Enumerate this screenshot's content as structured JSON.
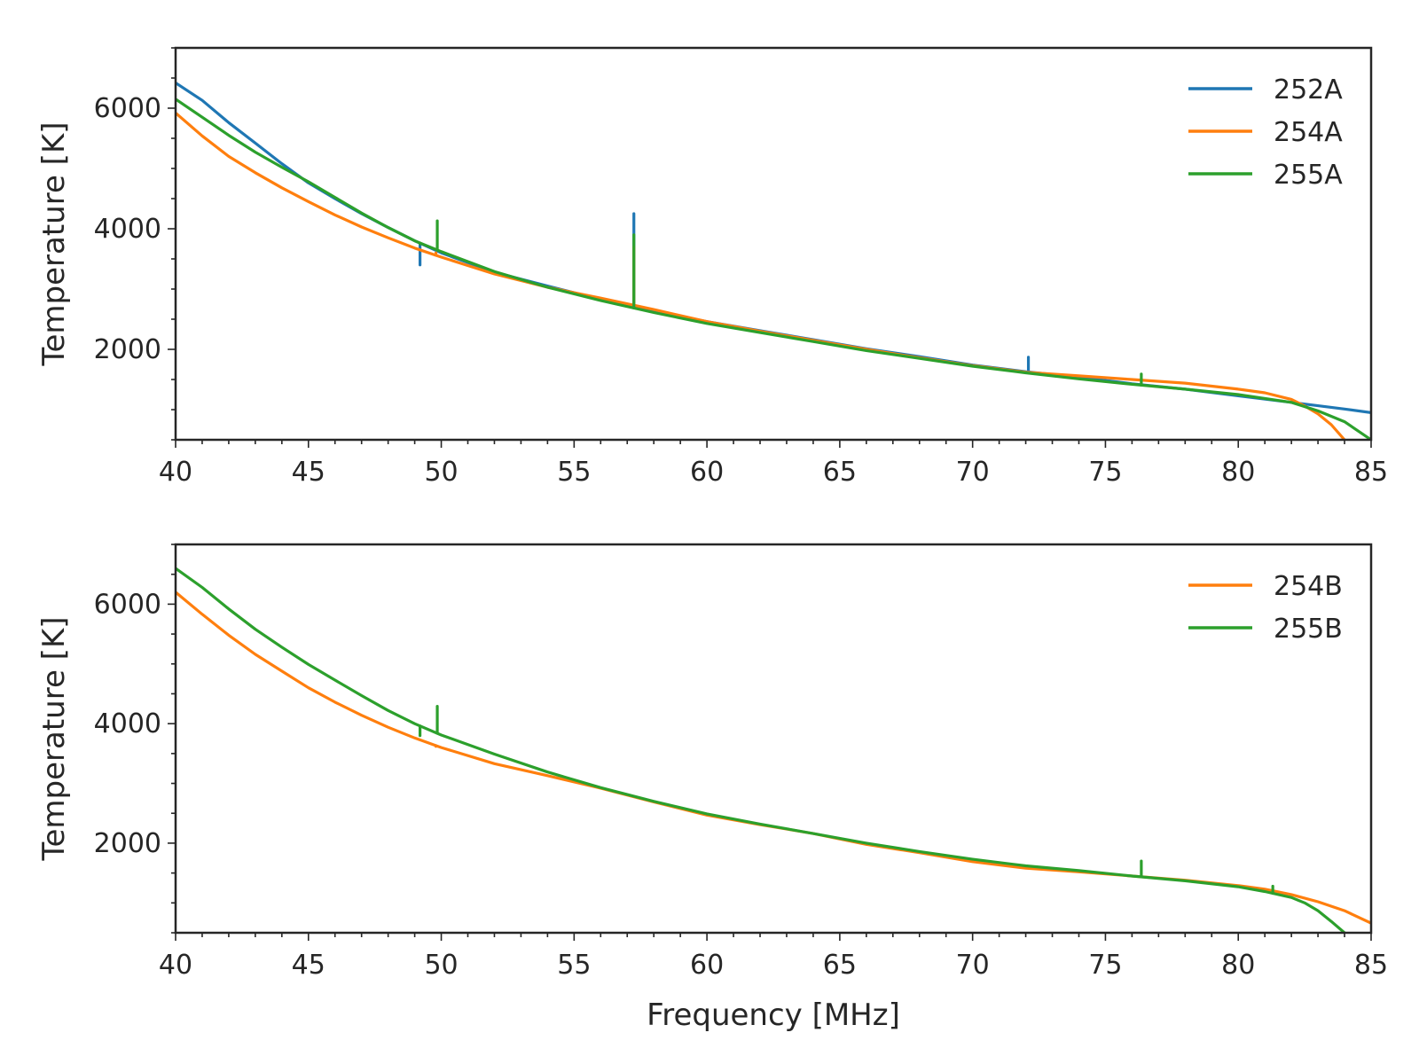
{
  "chart_data": [
    {
      "type": "line",
      "xlim": [
        40,
        85
      ],
      "ylim": [
        500,
        7000
      ],
      "xticks": [
        40,
        45,
        50,
        55,
        60,
        65,
        70,
        75,
        80,
        85
      ],
      "yticks": [
        2000,
        4000,
        6000
      ],
      "xlabel": "",
      "ylabel": "Temperature [K]",
      "legend_position": "upper-right",
      "grid": false,
      "series": [
        {
          "name": "252A",
          "color": "#1f77b4",
          "x": [
            40,
            41,
            42,
            43,
            44,
            45,
            46,
            47,
            48,
            49,
            50,
            52,
            54,
            56,
            58,
            60,
            62,
            64,
            66,
            68,
            70,
            72,
            74,
            76,
            78,
            80,
            82,
            84,
            85
          ],
          "y": [
            6420,
            6130,
            5760,
            5420,
            5080,
            4760,
            4500,
            4250,
            4020,
            3800,
            3600,
            3280,
            3050,
            2830,
            2630,
            2460,
            2310,
            2160,
            2010,
            1880,
            1740,
            1630,
            1540,
            1430,
            1340,
            1230,
            1120,
            1010,
            950
          ],
          "spikes": [
            {
              "x": 49.2,
              "y": 3400
            },
            {
              "x": 57.25,
              "y": 4250
            },
            {
              "x": 72.1,
              "y": 1870
            }
          ]
        },
        {
          "name": "254A",
          "color": "#ff7f0e",
          "x": [
            40,
            41,
            42,
            43,
            44,
            45,
            46,
            47,
            48,
            49,
            50,
            52,
            54,
            56,
            58,
            60,
            62,
            64,
            66,
            68,
            70,
            72,
            74,
            76,
            78,
            80,
            81,
            82,
            82.5,
            83,
            83.5,
            84
          ],
          "y": [
            5920,
            5540,
            5200,
            4930,
            4680,
            4450,
            4230,
            4030,
            3850,
            3680,
            3530,
            3250,
            3030,
            2850,
            2660,
            2460,
            2300,
            2150,
            2000,
            1860,
            1730,
            1620,
            1560,
            1500,
            1440,
            1340,
            1280,
            1170,
            1060,
            930,
            750,
            500
          ],
          "spikes": [
            {
              "x": 49.8,
              "y": 3600
            },
            {
              "x": 57.25,
              "y": 3700
            }
          ]
        },
        {
          "name": "255A",
          "color": "#2ca02c",
          "x": [
            40,
            41,
            42,
            43,
            44,
            45,
            46,
            47,
            48,
            49,
            50,
            52,
            54,
            56,
            58,
            60,
            62,
            64,
            66,
            68,
            70,
            72,
            74,
            76,
            78,
            80,
            82,
            83,
            84,
            84.5,
            85
          ],
          "y": [
            6150,
            5850,
            5550,
            5270,
            5020,
            4780,
            4520,
            4260,
            4020,
            3800,
            3620,
            3290,
            3030,
            2810,
            2610,
            2430,
            2280,
            2130,
            1980,
            1850,
            1720,
            1610,
            1510,
            1420,
            1340,
            1250,
            1120,
            980,
            800,
            650,
            500
          ],
          "spikes": [
            {
              "x": 49.2,
              "y": 3750
            },
            {
              "x": 49.85,
              "y": 4130
            },
            {
              "x": 57.25,
              "y": 3900
            },
            {
              "x": 76.35,
              "y": 1590
            }
          ]
        }
      ]
    },
    {
      "type": "line",
      "xlim": [
        40,
        85
      ],
      "ylim": [
        500,
        7000
      ],
      "xticks": [
        40,
        45,
        50,
        55,
        60,
        65,
        70,
        75,
        80,
        85
      ],
      "yticks": [
        2000,
        4000,
        6000
      ],
      "xlabel": "Frequency [MHz]",
      "ylabel": "Temperature [K]",
      "legend_position": "upper-right",
      "grid": false,
      "series": [
        {
          "name": "254B",
          "color": "#ff7f0e",
          "x": [
            40,
            41,
            42,
            43,
            44,
            45,
            46,
            47,
            48,
            49,
            50,
            52,
            54,
            56,
            58,
            60,
            62,
            64,
            66,
            68,
            70,
            72,
            74,
            76,
            78,
            80,
            81,
            82,
            83,
            84,
            85
          ],
          "y": [
            6200,
            5830,
            5480,
            5160,
            4880,
            4600,
            4360,
            4140,
            3940,
            3760,
            3600,
            3330,
            3130,
            2920,
            2690,
            2470,
            2310,
            2160,
            1980,
            1840,
            1690,
            1580,
            1520,
            1450,
            1380,
            1290,
            1230,
            1140,
            1020,
            870,
            660
          ],
          "spikes": [
            {
              "x": 49.8,
              "y": 3620
            }
          ]
        },
        {
          "name": "255B",
          "color": "#2ca02c",
          "x": [
            40,
            41,
            42,
            43,
            44,
            45,
            46,
            47,
            48,
            49,
            50,
            52,
            54,
            56,
            58,
            60,
            62,
            64,
            66,
            68,
            70,
            72,
            74,
            76,
            78,
            80,
            81,
            82,
            82.5,
            83,
            83.5,
            84
          ],
          "y": [
            6600,
            6280,
            5920,
            5580,
            5280,
            4990,
            4730,
            4470,
            4220,
            4000,
            3810,
            3490,
            3190,
            2930,
            2700,
            2490,
            2320,
            2160,
            2000,
            1860,
            1730,
            1620,
            1540,
            1450,
            1370,
            1270,
            1190,
            1090,
            1000,
            870,
            690,
            500
          ],
          "spikes": [
            {
              "x": 49.2,
              "y": 3800
            },
            {
              "x": 49.85,
              "y": 4290
            },
            {
              "x": 76.35,
              "y": 1700
            },
            {
              "x": 81.3,
              "y": 1280
            }
          ]
        }
      ]
    }
  ]
}
